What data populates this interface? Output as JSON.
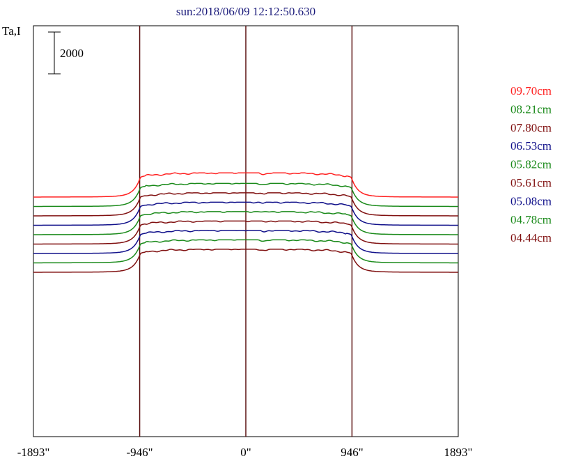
{
  "chart_data": {
    "type": "line",
    "title": "sun:2018/06/09 12:12:50.630",
    "ylabel": "Ta,I",
    "xlim": [
      -1893,
      1893
    ],
    "x_ticks": [
      "-1893\"",
      "-946\"",
      "0\"",
      "946\"",
      "1893\""
    ],
    "x_tick_values": [
      -1893,
      -946,
      0,
      946,
      1893
    ],
    "vertical_lines": [
      -946,
      0,
      946
    ],
    "scale_bar": {
      "label": "2000",
      "value": 2000
    },
    "legend_position": "right",
    "series": [
      {
        "name": "09.70cm",
        "color": "#ff2020",
        "baseline": 2950,
        "peak": 4050
      },
      {
        "name": "08.21cm",
        "color": "#1a8a1a",
        "baseline": 2500,
        "peak": 3550
      },
      {
        "name": "07.80cm",
        "color": "#801010",
        "baseline": 2050,
        "peak": 3100
      },
      {
        "name": "06.53cm",
        "color": "#10108a",
        "baseline": 1600,
        "peak": 2650
      },
      {
        "name": "05.82cm",
        "color": "#1a8a1a",
        "baseline": 1150,
        "peak": 2200
      },
      {
        "name": "05.61cm",
        "color": "#801010",
        "baseline": 700,
        "peak": 1750
      },
      {
        "name": "05.08cm",
        "color": "#10108a",
        "baseline": 250,
        "peak": 1300
      },
      {
        "name": "04.78cm",
        "color": "#1a8a1a",
        "baseline": -200,
        "peak": 850
      },
      {
        "name": "04.44cm",
        "color": "#801010",
        "baseline": -650,
        "peak": 400
      }
    ]
  }
}
